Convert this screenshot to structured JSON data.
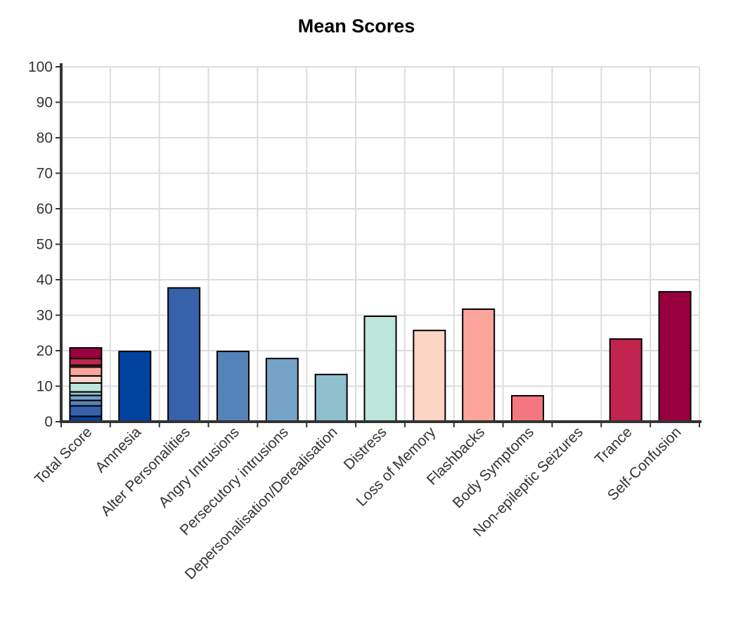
{
  "chart_data": {
    "type": "bar",
    "title": "Mean Scores",
    "xlabel": "",
    "ylabel": "",
    "ylim": [
      0,
      100
    ],
    "yticks": [
      0,
      10,
      20,
      30,
      40,
      50,
      60,
      70,
      80,
      90,
      100
    ],
    "grid": true,
    "legend": "none",
    "categories": [
      "Total Score",
      "Amnesia",
      "Alter Personalities",
      "Angry Intrusions",
      "Persecutory intrusions",
      "Depersonalisation/Derealisation",
      "Distress",
      "Loss of Memory",
      "Flashbacks",
      "Body Symptoms",
      "Non-epileptic Seizures",
      "Trance",
      "Self-Confusion"
    ],
    "values": [
      20.8,
      19.8,
      37.7,
      19.8,
      17.8,
      13.3,
      29.7,
      25.7,
      31.7,
      7.3,
      0,
      23.3,
      36.6
    ],
    "colors": [
      "#c0c0c0",
      "#0343a0",
      "#3661ab",
      "#5583b8",
      "#76a3c8",
      "#90bfce",
      "#bce5dc",
      "#fdd5c4",
      "#fea59b",
      "#f4777f",
      "#d94f6a",
      "#c1244f",
      "#98003f"
    ],
    "stacked_segments": [
      {
        "value": 1.5,
        "color": "#0343a0"
      },
      {
        "value": 2.95,
        "color": "#3661ab"
      },
      {
        "value": 1.55,
        "color": "#5583b8"
      },
      {
        "value": 1.4,
        "color": "#76a3c8"
      },
      {
        "value": 1.0,
        "color": "#90bfce"
      },
      {
        "value": 2.5,
        "color": "#bce5dc"
      },
      {
        "value": 2.0,
        "color": "#fdd5c4"
      },
      {
        "value": 2.5,
        "color": "#fea59b"
      },
      {
        "value": 0.5,
        "color": "#f4777f"
      },
      {
        "value": 0.0,
        "color": "#d94f6a"
      },
      {
        "value": 1.9,
        "color": "#c1244f"
      },
      {
        "value": 3.0,
        "color": "#98003f"
      }
    ]
  }
}
